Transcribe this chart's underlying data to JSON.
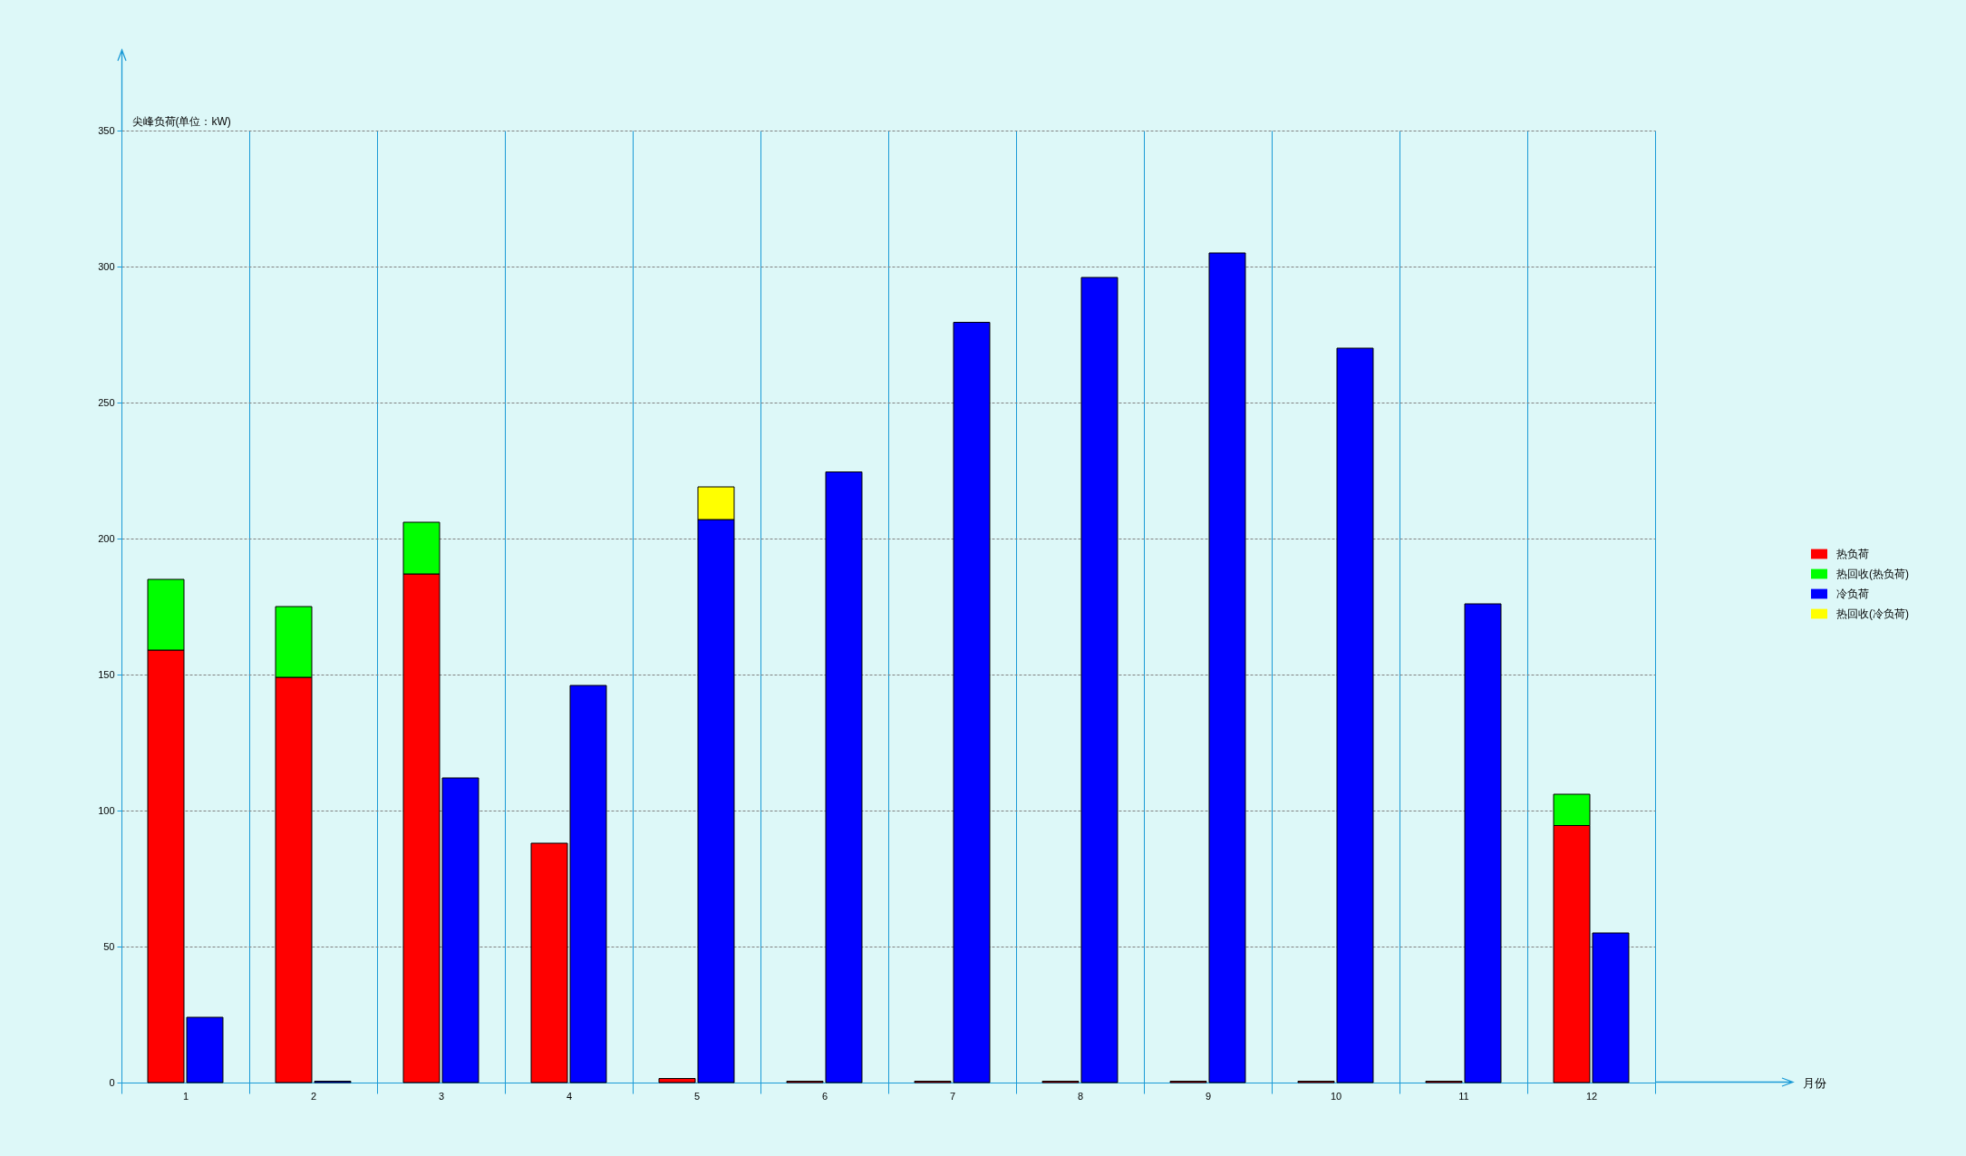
{
  "chart_data": {
    "type": "bar",
    "ylabel": "尖峰负荷(单位：kW)",
    "annotations": [
      "月份"
    ],
    "categories": [
      "1",
      "2",
      "3",
      "4",
      "5",
      "6",
      "7",
      "8",
      "9",
      "10",
      "11",
      "12"
    ],
    "series": [
      {
        "name": "热负荷",
        "color": "#ff0000",
        "values": [
          159,
          149,
          187,
          88,
          1.5,
          0.5,
          0.5,
          0.5,
          0.5,
          0.5,
          0.5,
          94.5
        ]
      },
      {
        "name": "热回收(热负荷)",
        "color": "#00ff00",
        "base": [
          159,
          149,
          187,
          null,
          null,
          null,
          null,
          null,
          null,
          null,
          null,
          94.5
        ],
        "values": [
          26,
          26,
          19,
          null,
          null,
          null,
          null,
          null,
          null,
          null,
          null,
          11.5
        ]
      },
      {
        "name": "冷负荷",
        "color": "#0000ff",
        "values": [
          24,
          0.5,
          112,
          146,
          207,
          224.5,
          279.5,
          296,
          305,
          270,
          176,
          55
        ]
      },
      {
        "name": "热回收(冷负荷)",
        "color": "#ffff00",
        "base": [
          null,
          null,
          null,
          null,
          207,
          null,
          null,
          null,
          null,
          null,
          null,
          null
        ],
        "values": [
          null,
          null,
          null,
          null,
          12,
          null,
          null,
          null,
          null,
          null,
          null,
          null
        ]
      }
    ],
    "ylim": [
      0,
      350
    ],
    "yticks": [
      0,
      50,
      100,
      150,
      200,
      250,
      300,
      350
    ],
    "grid": true,
    "legend": "right"
  }
}
